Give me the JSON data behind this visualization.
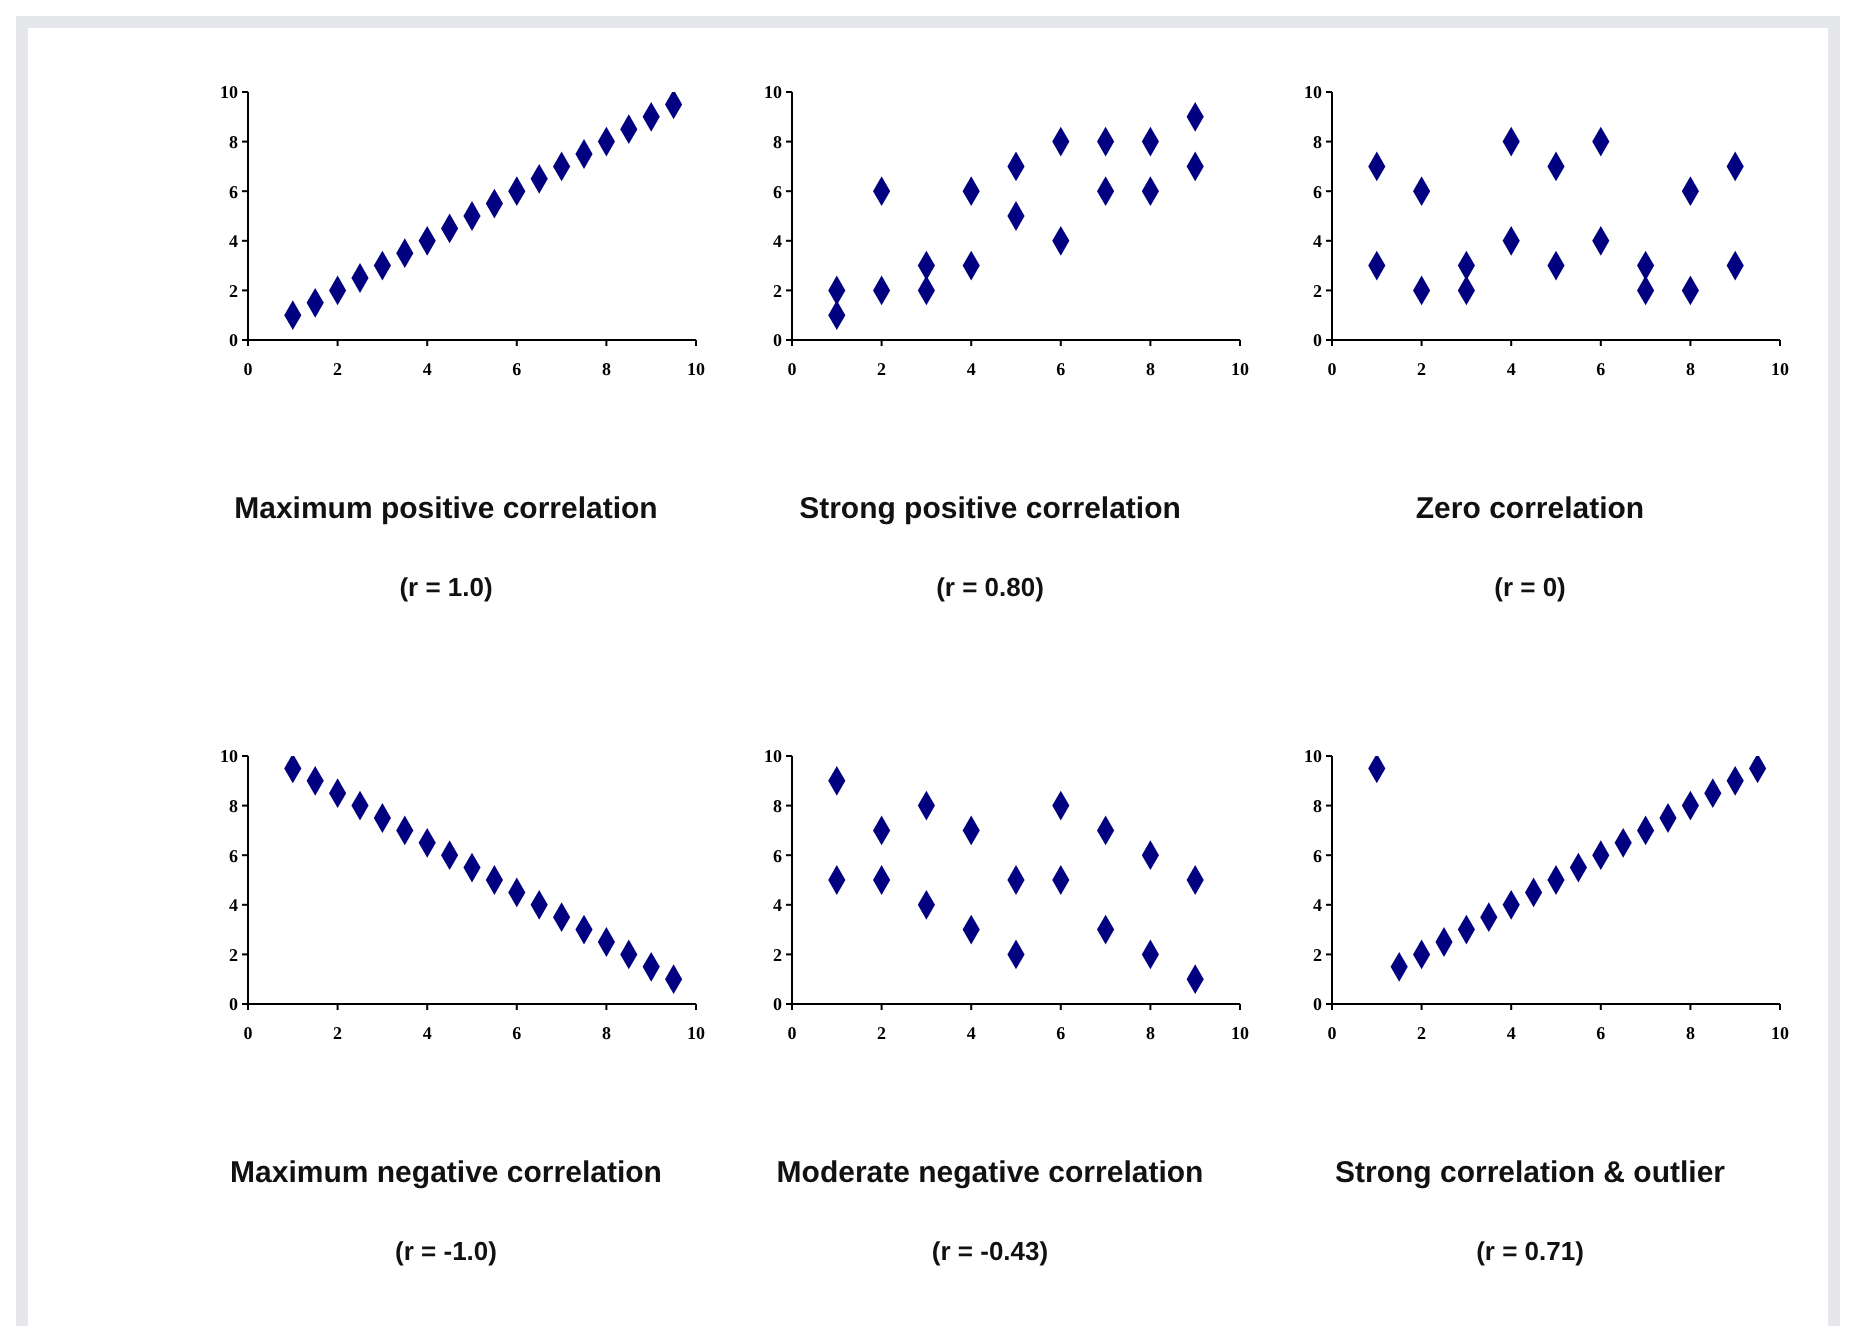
{
  "chart_data": [
    {
      "type": "scatter",
      "title": "Maximum positive correlation",
      "subtitle": "(r = 1.0)",
      "marker": "diamond",
      "grid": false,
      "xlim": [
        0,
        10
      ],
      "ylim": [
        0,
        10
      ],
      "xticks": [
        0,
        2,
        4,
        6,
        8,
        10
      ],
      "yticks": [
        0,
        2,
        4,
        6,
        8,
        10
      ],
      "series": [
        {
          "color": "#000080",
          "x": [
            1,
            1.5,
            2,
            2.5,
            3,
            3.5,
            4,
            4.5,
            5,
            5.5,
            6,
            6.5,
            7,
            7.5,
            8,
            8.5,
            9,
            9.5
          ],
          "values": [
            1,
            1.5,
            2,
            2.5,
            3,
            3.5,
            4,
            4.5,
            5,
            5.5,
            6,
            6.5,
            7,
            7.5,
            8,
            8.5,
            9,
            9.5
          ]
        }
      ]
    },
    {
      "type": "scatter",
      "title": "Strong positive correlation",
      "subtitle": "(r = 0.80)",
      "marker": "diamond",
      "grid": false,
      "xlim": [
        0,
        10
      ],
      "ylim": [
        0,
        10
      ],
      "xticks": [
        0,
        2,
        4,
        6,
        8,
        10
      ],
      "yticks": [
        0,
        2,
        4,
        6,
        8,
        10
      ],
      "series": [
        {
          "color": "#000080",
          "x": [
            1,
            1,
            2,
            2,
            3,
            3,
            4,
            4,
            5,
            5,
            6,
            6,
            7,
            7,
            8,
            8,
            9,
            9
          ],
          "values": [
            2,
            1,
            6,
            2,
            3,
            2,
            6,
            3,
            7,
            5,
            8,
            4,
            8,
            6,
            8,
            6,
            9,
            7
          ]
        }
      ]
    },
    {
      "type": "scatter",
      "title": "Zero correlation",
      "subtitle": "(r = 0)",
      "marker": "diamond",
      "grid": false,
      "xlim": [
        0,
        10
      ],
      "ylim": [
        0,
        10
      ],
      "xticks": [
        0,
        2,
        4,
        6,
        8,
        10
      ],
      "yticks": [
        0,
        2,
        4,
        6,
        8,
        10
      ],
      "series": [
        {
          "color": "#000080",
          "x": [
            1,
            1,
            2,
            2,
            3,
            3,
            4,
            4,
            5,
            5,
            6,
            6,
            7,
            7,
            8,
            8,
            9,
            9
          ],
          "values": [
            7,
            3,
            6,
            2,
            3,
            2,
            8,
            4,
            7,
            3,
            8,
            4,
            3,
            2,
            6,
            2,
            7,
            3
          ]
        }
      ]
    },
    {
      "type": "scatter",
      "title": "Maximum negative correlation",
      "subtitle": "(r = -1.0)",
      "marker": "diamond",
      "grid": false,
      "xlim": [
        0,
        10
      ],
      "ylim": [
        0,
        10
      ],
      "xticks": [
        0,
        2,
        4,
        6,
        8,
        10
      ],
      "yticks": [
        0,
        2,
        4,
        6,
        8,
        10
      ],
      "series": [
        {
          "color": "#000080",
          "x": [
            1,
            1.5,
            2,
            2.5,
            3,
            3.5,
            4,
            4.5,
            5,
            5.5,
            6,
            6.5,
            7,
            7.5,
            8,
            8.5,
            9,
            9.5
          ],
          "values": [
            9.5,
            9,
            8.5,
            8,
            7.5,
            7,
            6.5,
            6,
            5.5,
            5,
            4.5,
            4,
            3.5,
            3,
            2.5,
            2,
            1.5,
            1
          ]
        }
      ]
    },
    {
      "type": "scatter",
      "title": "Moderate negative correlation",
      "subtitle": "(r = -0.43)",
      "marker": "diamond",
      "grid": false,
      "xlim": [
        0,
        10
      ],
      "ylim": [
        0,
        10
      ],
      "xticks": [
        0,
        2,
        4,
        6,
        8,
        10
      ],
      "yticks": [
        0,
        2,
        4,
        6,
        8,
        10
      ],
      "series": [
        {
          "color": "#000080",
          "x": [
            1,
            1,
            2,
            2,
            3,
            3,
            4,
            4,
            5,
            5,
            6,
            6,
            7,
            7,
            8,
            8,
            9,
            9
          ],
          "values": [
            9,
            5,
            7,
            5,
            8,
            4,
            7,
            3,
            5,
            2,
            8,
            5,
            7,
            3,
            6,
            2,
            5,
            1
          ]
        }
      ]
    },
    {
      "type": "scatter",
      "title": "Strong correlation & outlier",
      "subtitle": "(r = 0.71)",
      "marker": "diamond",
      "grid": false,
      "xlim": [
        0,
        10
      ],
      "ylim": [
        0,
        10
      ],
      "xticks": [
        0,
        2,
        4,
        6,
        8,
        10
      ],
      "yticks": [
        0,
        2,
        4,
        6,
        8,
        10
      ],
      "series": [
        {
          "color": "#000080",
          "x": [
            1,
            1.5,
            2,
            2.5,
            3,
            3.5,
            4,
            4.5,
            5,
            5.5,
            6,
            6.5,
            7,
            7.5,
            8,
            8.5,
            9,
            9.5
          ],
          "values": [
            9.5,
            1.5,
            2,
            2.5,
            3,
            3.5,
            4,
            4.5,
            5,
            5.5,
            6,
            6.5,
            7,
            7.5,
            8,
            8.5,
            9,
            9.5
          ]
        }
      ]
    }
  ]
}
